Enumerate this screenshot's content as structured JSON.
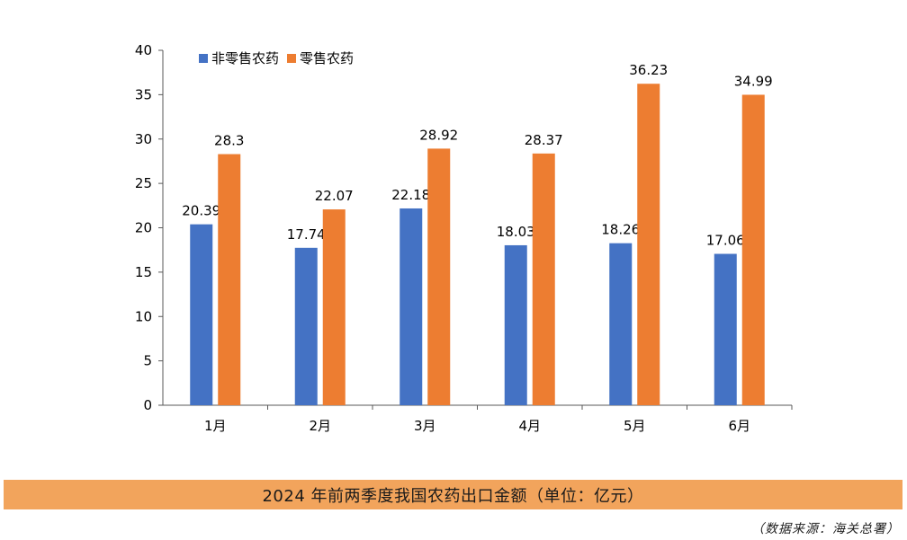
{
  "chart_data": {
    "type": "bar",
    "categories": [
      "1月",
      "2月",
      "3月",
      "4月",
      "5月",
      "6月"
    ],
    "series": [
      {
        "name": "非零售农药",
        "values": [
          20.39,
          17.74,
          22.18,
          18.03,
          18.26,
          17.06
        ],
        "color": "#4472c4"
      },
      {
        "name": "零售农药",
        "values": [
          28.3,
          22.07,
          28.92,
          28.37,
          36.23,
          34.99
        ],
        "color": "#ed7d31"
      }
    ],
    "value_labels": [
      [
        "20.39",
        "17.74",
        "22.18",
        "18.03",
        "18.26",
        "17.06"
      ],
      [
        "28.3",
        "22.07",
        "28.92",
        "28.37",
        "36.23",
        "34.99"
      ]
    ],
    "ylim": [
      0,
      40
    ],
    "yticks": [
      "0",
      "5",
      "10",
      "15",
      "20",
      "25",
      "30",
      "35",
      "40"
    ],
    "grid": false,
    "legend_position": "top-left"
  },
  "caption": "2024 年前两季度我国农药出口金额（单位：亿元）",
  "source": "（数据来源：海关总署）"
}
